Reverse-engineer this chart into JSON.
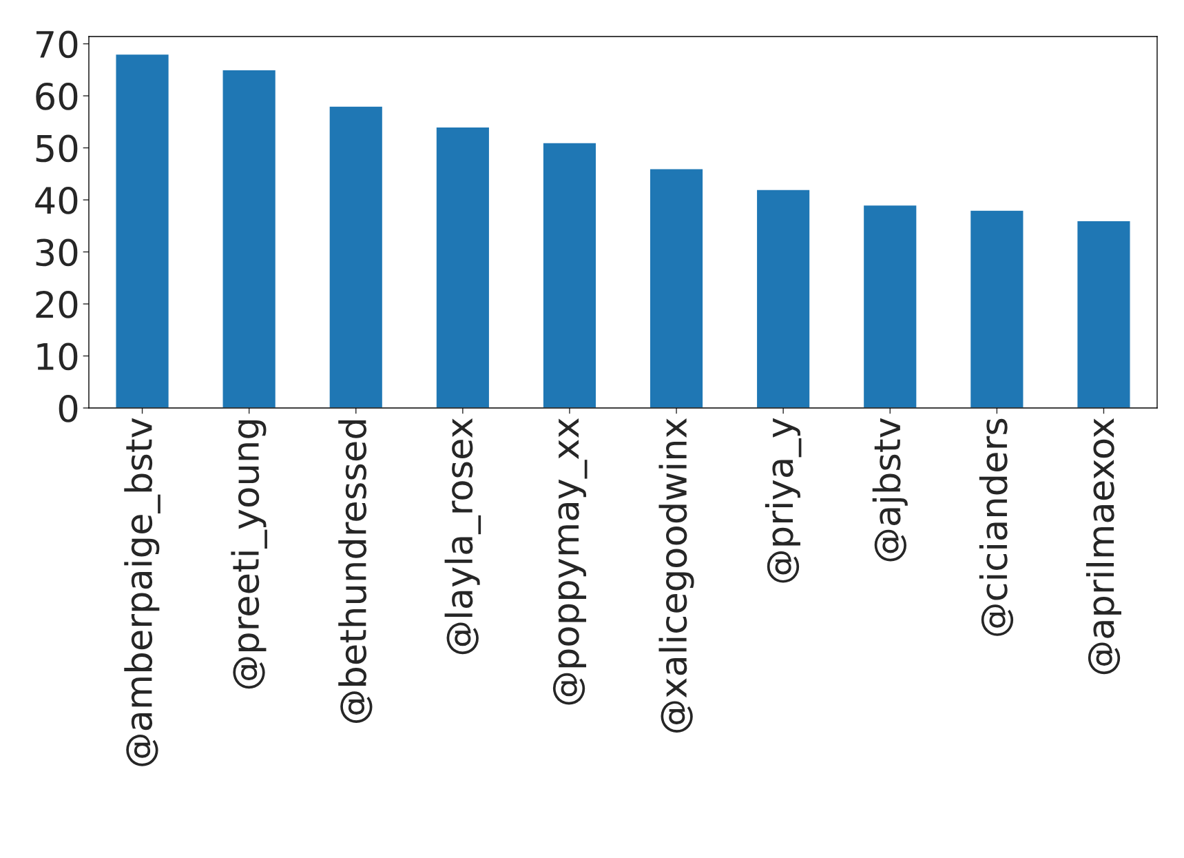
{
  "chart_data": {
    "type": "bar",
    "categories": [
      "@amberpaige_bstv",
      "@preeti_young",
      "@bethundressed",
      "@layla_rosex",
      "@poppymay_xx",
      "@xalicegoodwinx",
      "@priya_y",
      "@ajbstv",
      "@cicianders",
      "@aprilmaexox"
    ],
    "values": [
      68,
      65,
      58,
      54,
      51,
      46,
      42,
      39,
      38,
      36
    ],
    "color": "#1f77b4",
    "ylim": [
      0,
      71.4
    ],
    "yticks": [
      0,
      10,
      20,
      30,
      40,
      50,
      60,
      70
    ],
    "grid": false
  }
}
